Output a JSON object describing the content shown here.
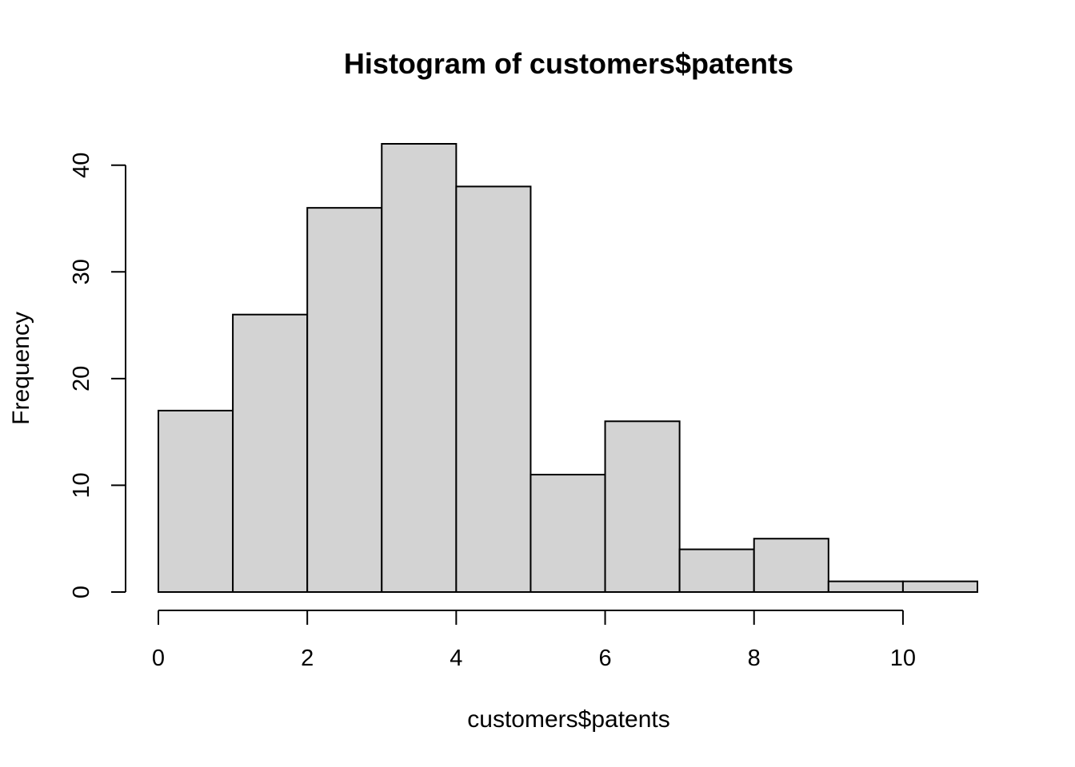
{
  "chart_data": {
    "type": "bar",
    "histogram": true,
    "title": "Histogram of customers$patents",
    "xlabel": "customers$patents",
    "ylabel": "Frequency",
    "bins": [
      {
        "start": 0,
        "end": 1,
        "count": 17
      },
      {
        "start": 1,
        "end": 2,
        "count": 26
      },
      {
        "start": 2,
        "end": 3,
        "count": 36
      },
      {
        "start": 3,
        "end": 4,
        "count": 42
      },
      {
        "start": 4,
        "end": 5,
        "count": 38
      },
      {
        "start": 5,
        "end": 6,
        "count": 11
      },
      {
        "start": 6,
        "end": 7,
        "count": 16
      },
      {
        "start": 7,
        "end": 8,
        "count": 4
      },
      {
        "start": 8,
        "end": 9,
        "count": 5
      },
      {
        "start": 9,
        "end": 10,
        "count": 1
      },
      {
        "start": 10,
        "end": 11,
        "count": 1
      }
    ],
    "xlim": [
      0,
      11
    ],
    "ylim": [
      0,
      42
    ],
    "x_ticks": [
      0,
      2,
      4,
      6,
      8,
      10
    ],
    "x_tick_labels": [
      "0",
      "2",
      "4",
      "6",
      "8",
      "10"
    ],
    "y_ticks": [
      0,
      10,
      20,
      30,
      40
    ],
    "y_tick_labels": [
      "0",
      "10",
      "20",
      "30",
      "40"
    ],
    "grid": false,
    "legend": "none",
    "bar_fill_color": "#d3d3d3",
    "bar_edge_color": "#000000"
  }
}
